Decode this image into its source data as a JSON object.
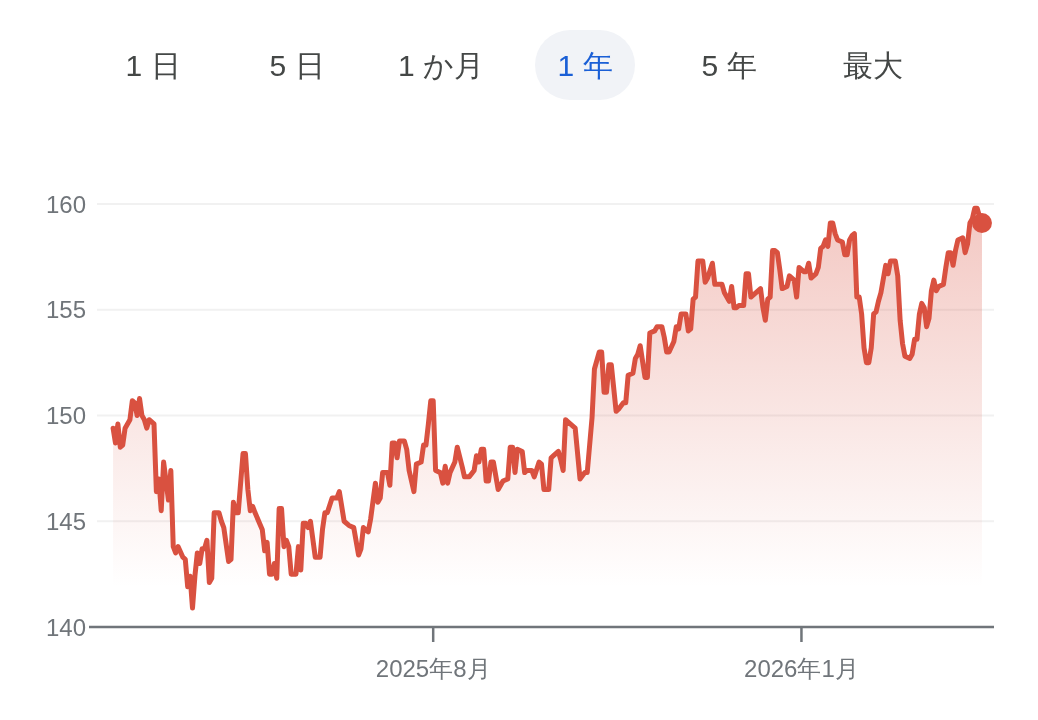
{
  "chart_data": {
    "type": "area",
    "annotations": [
      "1 日",
      "5 日",
      "1 か月",
      "1 年",
      "5 年",
      "最大"
    ],
    "xlim": [
      "2025-03-11",
      "2026-03-22"
    ],
    "xticks": [
      {
        "value": "2025-08-01",
        "label": "2025年8月"
      },
      {
        "value": "2026-01-01",
        "label": "2026年1月"
      }
    ],
    "ylim": [
      140,
      160
    ],
    "yticks": [
      140,
      145,
      150,
      155,
      160
    ],
    "grid": "y",
    "series": [
      {
        "color": "#d95140",
        "x": [
          "2025-03-21",
          "2025-03-22",
          "2025-03-23",
          "2025-03-24",
          "2025-03-25",
          "2025-03-26",
          "2025-03-28",
          "2025-03-29",
          "2025-03-30",
          "2025-03-31",
          "2025-04-01",
          "2025-04-02",
          "2025-04-03",
          "2025-04-04",
          "2025-04-05",
          "2025-04-07",
          "2025-04-08",
          "2025-04-09",
          "2025-04-10",
          "2025-04-11",
          "2025-04-13",
          "2025-04-14",
          "2025-04-15",
          "2025-04-16",
          "2025-04-17",
          "2025-04-19",
          "2025-04-20",
          "2025-04-21",
          "2025-04-22",
          "2025-04-23",
          "2025-04-24",
          "2025-04-25",
          "2025-04-26",
          "2025-04-27",
          "2025-04-28",
          "2025-04-29",
          "2025-04-30",
          "2025-05-01",
          "2025-05-02",
          "2025-05-04",
          "2025-05-05",
          "2025-05-06",
          "2025-05-08",
          "2025-05-09",
          "2025-05-10",
          "2025-05-11",
          "2025-05-12",
          "2025-05-14",
          "2025-05-15",
          "2025-05-16",
          "2025-05-17",
          "2025-05-18",
          "2025-05-19",
          "2025-05-22",
          "2025-05-23",
          "2025-05-24",
          "2025-05-25",
          "2025-05-26",
          "2025-05-27",
          "2025-05-28",
          "2025-05-29",
          "2025-05-30",
          "2025-05-31",
          "2025-06-01",
          "2025-06-02",
          "2025-06-03",
          "2025-06-05",
          "2025-06-06",
          "2025-06-07",
          "2025-06-08",
          "2025-06-09",
          "2025-06-10",
          "2025-06-11",
          "2025-06-13",
          "2025-06-15",
          "2025-06-16",
          "2025-06-17",
          "2025-06-18",
          "2025-06-20",
          "2025-06-22",
          "2025-06-23",
          "2025-06-24",
          "2025-06-25",
          "2025-06-27",
          "2025-06-29",
          "2025-07-01",
          "2025-07-02",
          "2025-07-03",
          "2025-07-05",
          "2025-07-06",
          "2025-07-08",
          "2025-07-09",
          "2025-07-10",
          "2025-07-11",
          "2025-07-13",
          "2025-07-14",
          "2025-07-15",
          "2025-07-16",
          "2025-07-17",
          "2025-07-18",
          "2025-07-20",
          "2025-07-21",
          "2025-07-22",
          "2025-07-24",
          "2025-07-25",
          "2025-07-27",
          "2025-07-28",
          "2025-07-29",
          "2025-07-30",
          "2025-07-31",
          "2025-08-01",
          "2025-08-02",
          "2025-08-04",
          "2025-08-05",
          "2025-08-06",
          "2025-08-07",
          "2025-08-08",
          "2025-08-10",
          "2025-08-11",
          "2025-08-13",
          "2025-08-14",
          "2025-08-16",
          "2025-08-18",
          "2025-08-19",
          "2025-08-20",
          "2025-08-21",
          "2025-08-22",
          "2025-08-23",
          "2025-08-24",
          "2025-08-25",
          "2025-08-26",
          "2025-08-28",
          "2025-08-30",
          "2025-09-01",
          "2025-09-02",
          "2025-09-03",
          "2025-09-04",
          "2025-09-05",
          "2025-09-07",
          "2025-09-08",
          "2025-09-09",
          "2025-09-11",
          "2025-09-12",
          "2025-09-14",
          "2025-09-15",
          "2025-09-16",
          "2025-09-18",
          "2025-09-19",
          "2025-09-20",
          "2025-09-22",
          "2025-09-23",
          "2025-09-24",
          "2025-09-25",
          "2025-09-26",
          "2025-09-29",
          "2025-10-01",
          "2025-10-03",
          "2025-10-04",
          "2025-10-06",
          "2025-10-07",
          "2025-10-09",
          "2025-10-10",
          "2025-10-11",
          "2025-10-12",
          "2025-10-13",
          "2025-10-14",
          "2025-10-16",
          "2025-10-17",
          "2025-10-19",
          "2025-10-20",
          "2025-10-21",
          "2025-10-23",
          "2025-10-24",
          "2025-10-25",
          "2025-10-26",
          "2025-10-28",
          "2025-10-29",
          "2025-10-30",
          "2025-11-01",
          "2025-11-02",
          "2025-11-04",
          "2025-11-05",
          "2025-11-06",
          "2025-11-07",
          "2025-11-09",
          "2025-11-10",
          "2025-11-11",
          "2025-11-12",
          "2025-11-14",
          "2025-11-15",
          "2025-11-16",
          "2025-11-17",
          "2025-11-18",
          "2025-11-19",
          "2025-11-21",
          "2025-11-22",
          "2025-11-23",
          "2025-11-25",
          "2025-11-26",
          "2025-11-27",
          "2025-11-29",
          "2025-11-30",
          "2025-12-02",
          "2025-12-03",
          "2025-12-04",
          "2025-12-05",
          "2025-12-06",
          "2025-12-08",
          "2025-12-09",
          "2025-12-10",
          "2025-12-11",
          "2025-12-13",
          "2025-12-15",
          "2025-12-16",
          "2025-12-17",
          "2025-12-18",
          "2025-12-19",
          "2025-12-20",
          "2025-12-21",
          "2025-12-22",
          "2025-12-23",
          "2025-12-24",
          "2025-12-26",
          "2025-12-27",
          "2025-12-29",
          "2025-12-30",
          "2025-12-31",
          "2026-01-02",
          "2026-01-03",
          "2026-01-04",
          "2026-01-05",
          "2026-01-07",
          "2026-01-08",
          "2026-01-09",
          "2026-01-10",
          "2026-01-11",
          "2026-01-12",
          "2026-01-13",
          "2026-01-14",
          "2026-01-15",
          "2026-01-16",
          "2026-01-18",
          "2026-01-19",
          "2026-01-20",
          "2026-01-21",
          "2026-01-22",
          "2026-01-23",
          "2026-01-24",
          "2026-01-25",
          "2026-01-26",
          "2026-01-27",
          "2026-01-28",
          "2026-01-29",
          "2026-01-30",
          "2026-01-31",
          "2026-02-01",
          "2026-02-02",
          "2026-02-03",
          "2026-02-05",
          "2026-02-06",
          "2026-02-07",
          "2026-02-09",
          "2026-02-10",
          "2026-02-11",
          "2026-02-12",
          "2026-02-13",
          "2026-02-15",
          "2026-02-16",
          "2026-02-17",
          "2026-02-18",
          "2026-02-19",
          "2026-02-20",
          "2026-02-21",
          "2026-02-22",
          "2026-02-23",
          "2026-02-24",
          "2026-02-25",
          "2026-02-26",
          "2026-02-27",
          "2026-03-01",
          "2026-03-02",
          "2026-03-03",
          "2026-03-04",
          "2026-03-05",
          "2026-03-06",
          "2026-03-07",
          "2026-03-09",
          "2026-03-10",
          "2026-03-11",
          "2026-03-12",
          "2026-03-13",
          "2026-03-14",
          "2026-03-15",
          "2026-03-16",
          "2026-03-17"
        ],
        "values": [
          149.4,
          148.7,
          149.6,
          148.5,
          148.6,
          149.4,
          149.8,
          150.7,
          150.6,
          150.0,
          150.8,
          150.0,
          149.8,
          149.4,
          149.8,
          149.6,
          146.4,
          147.0,
          145.5,
          147.8,
          146.0,
          147.4,
          143.8,
          143.5,
          143.8,
          143.3,
          143.2,
          141.9,
          142.4,
          140.9,
          142.4,
          143.5,
          143.0,
          143.7,
          143.7,
          144.1,
          142.1,
          142.3,
          145.4,
          145.4,
          145.0,
          144.7,
          143.1,
          143.2,
          145.9,
          145.4,
          145.4,
          148.2,
          148.2,
          146.5,
          145.5,
          145.7,
          145.4,
          144.6,
          143.6,
          144.0,
          142.5,
          142.5,
          143.0,
          142.3,
          145.6,
          145.6,
          143.8,
          144.1,
          143.8,
          142.5,
          142.5,
          143.8,
          142.7,
          144.9,
          144.9,
          144.7,
          145.0,
          143.3,
          143.3,
          144.6,
          145.4,
          145.4,
          146.1,
          146.1,
          146.4,
          145.7,
          145.0,
          144.8,
          144.7,
          143.4,
          143.7,
          144.7,
          144.5,
          145.1,
          146.8,
          145.9,
          146.1,
          147.3,
          147.3,
          146.7,
          148.7,
          148.7,
          148.0,
          148.8,
          148.8,
          148.4,
          147.4,
          146.4,
          147.7,
          147.8,
          148.6,
          148.6,
          149.6,
          150.7,
          150.7,
          147.4,
          147.3,
          146.8,
          147.6,
          146.8,
          147.3,
          147.8,
          148.5,
          147.6,
          147.1,
          147.1,
          147.4,
          148.1,
          147.8,
          148.4,
          148.4,
          146.9,
          146.9,
          147.8,
          147.8,
          146.5,
          146.9,
          147.0,
          148.5,
          148.5,
          147.3,
          148.4,
          148.3,
          147.3,
          147.4,
          147.4,
          147.1,
          147.8,
          147.7,
          146.5,
          146.5,
          148.0,
          148.1,
          148.3,
          147.9,
          147.4,
          149.8,
          149.7,
          149.4,
          147.0,
          147.3,
          147.3,
          149.9,
          152.2,
          153.0,
          153.0,
          151.1,
          151.1,
          152.4,
          152.4,
          150.2,
          150.3,
          150.6,
          150.6,
          151.9,
          152.0,
          152.7,
          152.9,
          153.3,
          151.8,
          151.8,
          153.9,
          154.0,
          154.2,
          154.2,
          153.7,
          153.0,
          153.0,
          153.5,
          154.2,
          154.1,
          154.8,
          154.8,
          154.0,
          154.1,
          155.5,
          155.6,
          157.3,
          157.3,
          156.3,
          156.5,
          157.2,
          156.2,
          156.2,
          156.2,
          155.8,
          155.4,
          156.1,
          155.1,
          155.1,
          155.2,
          155.2,
          156.7,
          156.7,
          155.6,
          155.8,
          156.0,
          155.1,
          154.5,
          155.5,
          155.6,
          157.8,
          157.8,
          157.7,
          156.9,
          156.0,
          156.1,
          156.6,
          156.4,
          155.6,
          157.0,
          156.8,
          156.8,
          157.2,
          156.5,
          156.7,
          157.0,
          157.9,
          158.0,
          158.3,
          158.0,
          159.1,
          159.1,
          158.6,
          158.3,
          158.2,
          157.6,
          157.6,
          158.3,
          158.5,
          158.6,
          155.6,
          155.6,
          154.8,
          153.2,
          152.5,
          152.5,
          153.2,
          154.8,
          154.9,
          155.4,
          155.8,
          157.1,
          156.7,
          157.3,
          157.3,
          156.6,
          154.5,
          153.4,
          152.8,
          152.7,
          152.9,
          153.6,
          153.6,
          154.8,
          155.3,
          155.1,
          154.2,
          154.6,
          155.9,
          156.4,
          155.9,
          156.1,
          156.2,
          157.0,
          157.7,
          157.7,
          157.1,
          157.8,
          158.3,
          158.4,
          157.7,
          158.1,
          159.1,
          159.3,
          159.8,
          159.8,
          159.4,
          159.1
        ]
      },
      {
        "type": "scatter",
        "color": "#d95140",
        "x": [
          "2026-03-17"
        ],
        "values": [
          159.1
        ]
      }
    ]
  }
}
